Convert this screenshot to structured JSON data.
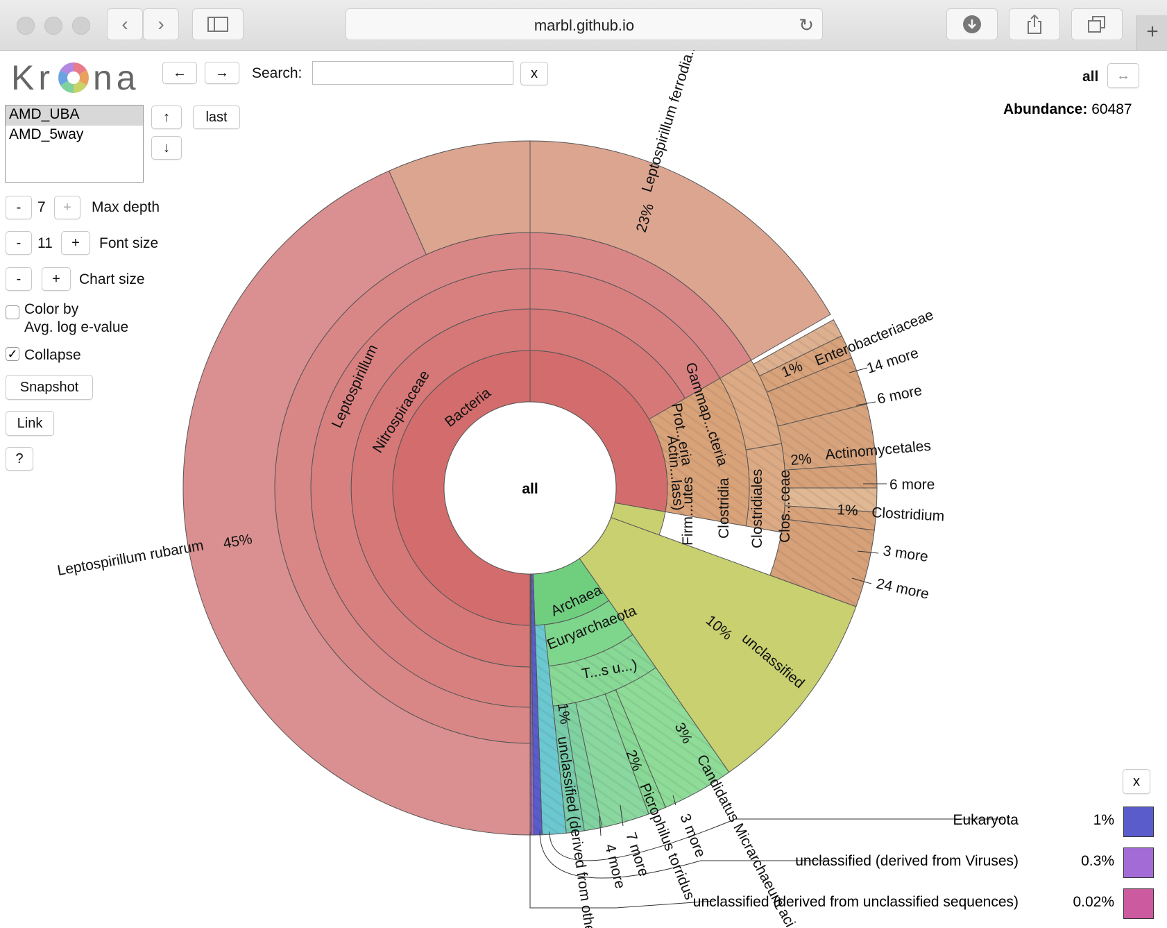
{
  "browser": {
    "url": "marbl.github.io",
    "back_icon": "chevron-left-icon",
    "forward_icon": "chevron-right-icon",
    "sidebar_icon": "sidebar-icon",
    "reload_icon": "reload-icon",
    "download_icon": "download-icon",
    "share_icon": "share-icon",
    "tabs_icon": "tabs-icon",
    "new_tab_label": "+"
  },
  "krona": {
    "logo_left": "Kr",
    "logo_right": "na",
    "nav_back": "←",
    "nav_forward": "→",
    "search_label": "Search:",
    "search_value": "",
    "search_clear": "x",
    "datasets": [
      "AMD_UBA",
      "AMD_5way"
    ],
    "selected_dataset": "AMD_UBA",
    "dataset_up": "↑",
    "dataset_down": "↓",
    "dataset_last": "last",
    "max_depth": {
      "minus": "-",
      "value": "7",
      "plus": "+",
      "label": "Max depth"
    },
    "font_size": {
      "minus": "-",
      "value": "11",
      "plus": "+",
      "label": "Font size"
    },
    "chart_size": {
      "minus": "-",
      "plus": "+",
      "label": "Chart size"
    },
    "color_by_line1": "Color by",
    "color_by_line2": "Avg. log e-value",
    "color_by_checked": false,
    "collapse_label": "Collapse",
    "collapse_checked": true,
    "snapshot_label": "Snapshot",
    "link_label": "Link",
    "help_label": "?",
    "focus_name": "all",
    "focus_expand": "↔",
    "abundance_label": "Abundance:",
    "abundance_value": "60487",
    "center_label": "all"
  },
  "sunburst_labels": {
    "l_ferrodiazotrophum": "Leptospirillum ferrodia...",
    "l_ferro_pct": "23%",
    "l_rubarum": "Leptospirillum rubarum",
    "l_rubarum_pct": "45%",
    "leptospirillum": "Leptospirillum",
    "nitrospiraceae": "Nitrospiraceae",
    "bacteria": "Bacteria",
    "gammap": "Gammap...cteria",
    "prot": "Prot...eria",
    "actin": "Actin...lass)",
    "firm": "Firm...utes",
    "clostridia": "Clostridia",
    "clostridiales": "Clostridiales",
    "clos": "Clos...ceae",
    "enterobacteriaceae": "Enterobacteriaceae",
    "enterobacteriaceae_pct": "1%",
    "more14": "14 more",
    "more6a": "6 more",
    "actinomycetales": "Actinomycetales",
    "actinomycetales_pct": "2%",
    "more6b": "6 more",
    "clostridium": "Clostridium",
    "clostridium_pct": "1%",
    "more3a": "3 more",
    "more24": "24 more",
    "unclassified": "unclassified",
    "unclassified_pct": "10%",
    "archaea": "Archaea",
    "euryarchaeota": "Euryarchaeota",
    "ts": "T...s u...)",
    "candidatus": "Candidatus Micrarchaeum aci...",
    "candidatus_pct": "3%",
    "picrophilus": "Picrophilus torridus",
    "picrophilus_pct": "2%",
    "more3b": "3 more",
    "more7": "7 more",
    "more4": "4 more",
    "unclassified_other": "unclassified (derived from other...",
    "unclassified_other_pct": "1%"
  },
  "details_close": "x",
  "legend": [
    {
      "label": "Eukaryota",
      "pct": "1%",
      "color": "#5a5ccc"
    },
    {
      "label": "unclassified (derived from Viruses)",
      "pct": "0.3%",
      "color": "#a36bd6"
    },
    {
      "label": "unclassified (derived from unclassified sequences)",
      "pct": "0.02%",
      "color": "#cc5a9e"
    }
  ]
}
